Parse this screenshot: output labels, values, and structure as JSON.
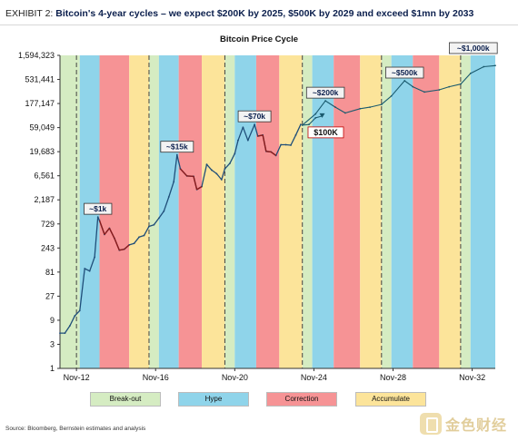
{
  "header": {
    "exhibit_label": "EXHIBIT 2:",
    "headline": "Bitcoin's 4-year cycles – we expect $200K by 2025, $500K by 2029 and exceed $1mn by 2033"
  },
  "footer": {
    "source": "Source: Bloomberg, Bernstein estimates and analysis",
    "watermark": "金色财经"
  },
  "colors": {
    "break_out": "#d5ecc2",
    "hype": "#8fd4ea",
    "correction": "#f69395",
    "accumulate": "#fce49a",
    "historical_line": "#1f4e79",
    "correction_line": "#8b1a1a",
    "forecast_line": "#1a5a6e"
  },
  "chart_data": {
    "type": "line",
    "title": "Bitcoin Price Cycle",
    "y_scale": "log",
    "ylim": [
      1,
      1594323
    ],
    "yticks": [
      1,
      3,
      9,
      27,
      81,
      243,
      729,
      2187,
      6561,
      19683,
      59049,
      177147,
      531441,
      1594323
    ],
    "ytick_labels": [
      "1",
      "3",
      "9",
      "27",
      "81",
      "243",
      "729",
      "2,187",
      "6,561",
      "19,683",
      "59,049",
      "177,147",
      "531,441",
      "1,594,323"
    ],
    "xlim": [
      "2012-01",
      "2034-01"
    ],
    "xtick_labels": [
      "Nov-12",
      "Nov-16",
      "Nov-20",
      "Nov-24",
      "Nov-28",
      "Nov-32"
    ],
    "halving_lines": [
      "2012-11",
      "2016-07",
      "2020-05",
      "2024-04",
      "2028-04",
      "2032-04"
    ],
    "phases": [
      {
        "phase": "Break-out",
        "start": "2012-01",
        "end": "2013-01"
      },
      {
        "phase": "Hype",
        "start": "2013-01",
        "end": "2014-01"
      },
      {
        "phase": "Correction",
        "start": "2014-01",
        "end": "2015-07"
      },
      {
        "phase": "Accumulate",
        "start": "2015-07",
        "end": "2016-07"
      },
      {
        "phase": "Break-out",
        "start": "2016-07",
        "end": "2017-01"
      },
      {
        "phase": "Hype",
        "start": "2017-01",
        "end": "2018-01"
      },
      {
        "phase": "Correction",
        "start": "2018-01",
        "end": "2019-03"
      },
      {
        "phase": "Accumulate",
        "start": "2019-03",
        "end": "2020-05"
      },
      {
        "phase": "Break-out",
        "start": "2020-05",
        "end": "2020-11"
      },
      {
        "phase": "Hype",
        "start": "2020-11",
        "end": "2021-12"
      },
      {
        "phase": "Correction",
        "start": "2021-12",
        "end": "2023-02"
      },
      {
        "phase": "Accumulate",
        "start": "2023-02",
        "end": "2024-04"
      },
      {
        "phase": "Break-out",
        "start": "2024-04",
        "end": "2024-10"
      },
      {
        "phase": "Hype",
        "start": "2024-10",
        "end": "2025-11"
      },
      {
        "phase": "Correction",
        "start": "2025-11",
        "end": "2027-03"
      },
      {
        "phase": "Accumulate",
        "start": "2027-03",
        "end": "2028-04"
      },
      {
        "phase": "Break-out",
        "start": "2028-04",
        "end": "2028-10"
      },
      {
        "phase": "Hype",
        "start": "2028-10",
        "end": "2029-11"
      },
      {
        "phase": "Correction",
        "start": "2029-11",
        "end": "2031-03"
      },
      {
        "phase": "Accumulate",
        "start": "2031-03",
        "end": "2032-04"
      },
      {
        "phase": "Break-out",
        "start": "2032-04",
        "end": "2032-10"
      },
      {
        "phase": "Hype",
        "start": "2032-10",
        "end": "2034-01"
      }
    ],
    "legend": [
      "Break-out",
      "Hype",
      "Correction",
      "Accumulate"
    ],
    "legend_position": "bottom",
    "series": [
      {
        "kind": "historical",
        "points": [
          [
            "2012-01",
            5
          ],
          [
            "2012-04",
            5
          ],
          [
            "2012-07",
            7
          ],
          [
            "2012-10",
            11
          ],
          [
            "2013-01",
            14
          ],
          [
            "2013-04",
            95
          ],
          [
            "2013-07",
            85
          ],
          [
            "2013-10",
            160
          ],
          [
            "2013-12",
            1000
          ],
          [
            "2014-01",
            850
          ],
          [
            "2014-04",
            450
          ],
          [
            "2014-07",
            600
          ],
          [
            "2014-10",
            380
          ],
          [
            "2015-01",
            220
          ],
          [
            "2015-04",
            230
          ],
          [
            "2015-07",
            280
          ],
          [
            "2015-10",
            300
          ],
          [
            "2016-01",
            400
          ],
          [
            "2016-04",
            430
          ],
          [
            "2016-07",
            650
          ],
          [
            "2016-10",
            700
          ],
          [
            "2017-01",
            950
          ],
          [
            "2017-04",
            1300
          ],
          [
            "2017-07",
            2500
          ],
          [
            "2017-10",
            5000
          ],
          [
            "2017-12",
            17000
          ],
          [
            "2018-02",
            9000
          ],
          [
            "2018-06",
            6500
          ],
          [
            "2018-10",
            6400
          ],
          [
            "2018-12",
            3500
          ],
          [
            "2019-03",
            4000
          ],
          [
            "2019-06",
            11000
          ],
          [
            "2019-09",
            8500
          ],
          [
            "2019-12",
            7200
          ],
          [
            "2020-03",
            5500
          ],
          [
            "2020-05",
            9000
          ],
          [
            "2020-08",
            11500
          ],
          [
            "2020-11",
            18000
          ],
          [
            "2021-01",
            33000
          ],
          [
            "2021-04",
            60000
          ],
          [
            "2021-07",
            33000
          ],
          [
            "2021-11",
            68000
          ],
          [
            "2022-01",
            40000
          ],
          [
            "2022-04",
            42000
          ],
          [
            "2022-06",
            20000
          ],
          [
            "2022-09",
            19500
          ],
          [
            "2022-12",
            16500
          ],
          [
            "2023-03",
            27000
          ],
          [
            "2023-06",
            27000
          ],
          [
            "2023-09",
            26500
          ],
          [
            "2023-12",
            42000
          ],
          [
            "2024-03",
            68000
          ]
        ]
      },
      {
        "kind": "downside scenario",
        "points": [
          [
            "2024-04",
            66000
          ],
          [
            "2024-08",
            68000
          ],
          [
            "2024-12",
            92000
          ],
          [
            "2025-04",
            100000
          ]
        ]
      },
      {
        "kind": "forecast",
        "points": [
          [
            "2024-04",
            66000
          ],
          [
            "2024-12",
            110000
          ],
          [
            "2025-06",
            200000
          ],
          [
            "2025-12",
            150000
          ],
          [
            "2026-06",
            115000
          ],
          [
            "2027-03",
            140000
          ],
          [
            "2027-09",
            150000
          ],
          [
            "2028-04",
            170000
          ],
          [
            "2028-10",
            250000
          ],
          [
            "2029-06",
            500000
          ],
          [
            "2029-11",
            380000
          ],
          [
            "2030-06",
            300000
          ],
          [
            "2031-03",
            330000
          ],
          [
            "2031-09",
            380000
          ],
          [
            "2032-04",
            430000
          ],
          [
            "2032-10",
            700000
          ],
          [
            "2033-06",
            950000
          ],
          [
            "2034-01",
            1000000
          ]
        ]
      }
    ],
    "annotations": [
      {
        "text": "~$1k",
        "x": "2013-12",
        "y": 1000
      },
      {
        "text": "~$15k",
        "x": "2017-12",
        "y": 17000
      },
      {
        "text": "~$70k",
        "x": "2021-11",
        "y": 68000
      },
      {
        "text": "~$200k",
        "x": "2025-06",
        "y": 200000
      },
      {
        "text": "$100K",
        "x": "2025-04",
        "y": 100000
      },
      {
        "text": "~$500k",
        "x": "2029-06",
        "y": 500000
      },
      {
        "text": "~$1,000k",
        "x": "2033-12",
        "y": 1000000
      }
    ]
  }
}
